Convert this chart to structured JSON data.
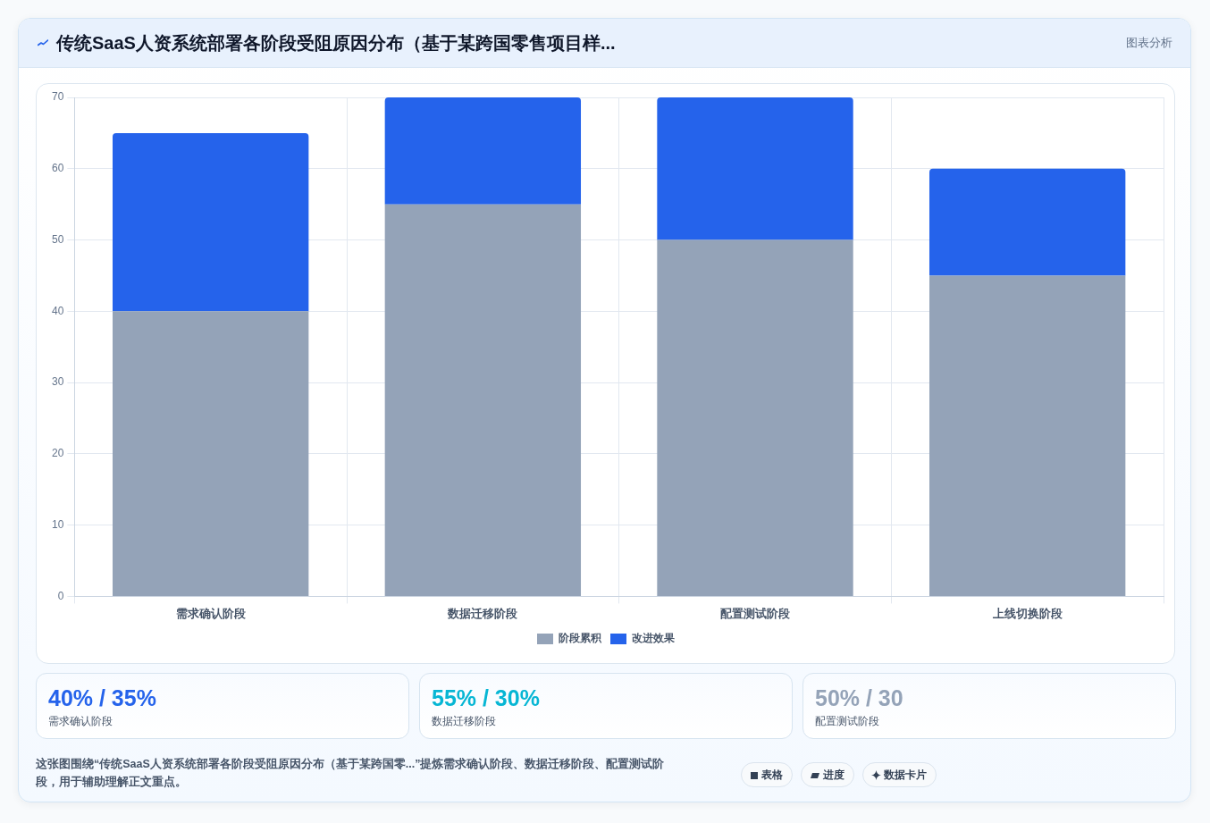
{
  "chart_data": {
    "type": "bar",
    "title": "传统SaaS人资系统部署各阶段受阻原因分布（基于某跨国零售项目样...",
    "categories": [
      "需求确认阶段",
      "数据迁移阶段",
      "配置测试阶段",
      "上线切换阶段"
    ],
    "series": [
      {
        "name": "阶段累积",
        "color": "#94a3b8",
        "values": [
          40,
          55,
          50,
          45
        ]
      },
      {
        "name": "改进效果",
        "color": "#2563eb",
        "values": [
          25,
          15,
          20,
          15
        ]
      }
    ],
    "stacked": true,
    "ylim": [
      0,
      70
    ],
    "yticks": [
      0,
      10,
      20,
      30,
      40,
      50,
      60,
      70
    ],
    "grid": true,
    "legend": "bottom",
    "annotations": [
      "图表分析",
      "40% / 35%",
      "需求确认阶段",
      "55% / 30%",
      "数据迁移阶段",
      "50% / 30",
      "配置测试阶段",
      "这张图围绕“传统SaaS人资系统部署各阶段受阻原因分布（基于某跨国零...”提炼需求确认阶段、数据迁移阶段、配置测试阶段，用于辅助理解正文重点。",
      "表格",
      "进度",
      "数据卡片"
    ]
  }
}
